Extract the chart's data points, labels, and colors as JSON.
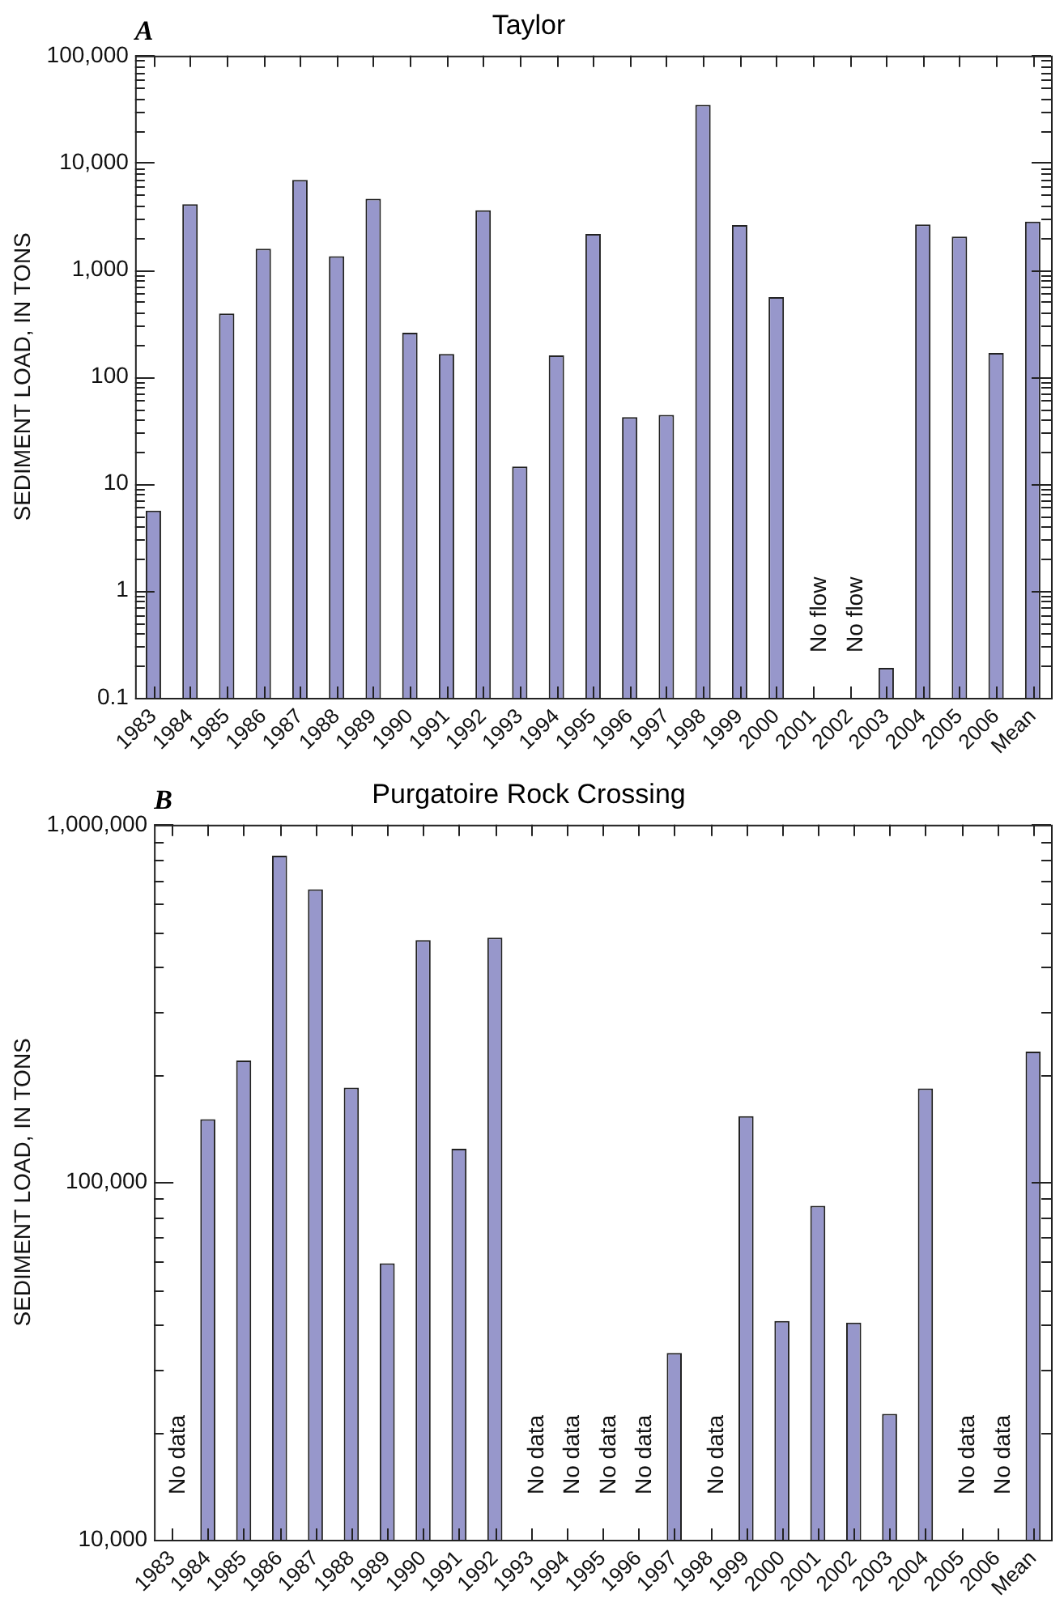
{
  "chart_data": [
    {
      "type": "bar",
      "title": "Taylor",
      "ylabel": "SEDIMENT LOAD, IN TONS",
      "categories": [
        "1983",
        "1984",
        "1985",
        "1986",
        "1987",
        "1988",
        "1989",
        "1990",
        "1991",
        "1992",
        "1993",
        "1994",
        "1995",
        "1996",
        "1997",
        "1998",
        "1999",
        "2000",
        "2001",
        "2002",
        "2003",
        "2004",
        "2005",
        "2006",
        "Mean"
      ],
      "values": [
        5.6,
        4100,
        390,
        1570,
        6900,
        1340,
        4600,
        258,
        163,
        3590,
        14.5,
        158,
        2160,
        42,
        44,
        34800,
        2610,
        556,
        null,
        null,
        0.19,
        2650,
        2040,
        167,
        2810
      ],
      "color": "#9797cb",
      "log": true,
      "ylim": [
        0.1,
        100000
      ],
      "yticks": [
        0.1,
        {
          "value": 0.2,
          "label": null
        },
        {
          "value": 0.3,
          "label": null
        },
        {
          "value": 0.4,
          "label": null
        },
        {
          "value": 0.5,
          "label": null
        },
        {
          "value": 0.6,
          "label": null
        },
        {
          "value": 0.7,
          "label": null
        },
        {
          "value": 0.8,
          "label": null
        },
        {
          "value": 0.9,
          "label": null
        },
        1,
        {
          "value": 2,
          "label": null
        },
        {
          "value": 3,
          "label": null
        },
        {
          "value": 4,
          "label": null
        },
        {
          "value": 5,
          "label": null
        },
        {
          "value": 6,
          "label": null
        },
        {
          "value": 7,
          "label": null
        },
        {
          "value": 8,
          "label": null
        },
        {
          "value": 9,
          "label": null
        },
        10,
        {
          "value": 20,
          "label": null
        },
        {
          "value": 30,
          "label": null
        },
        {
          "value": 40,
          "label": null
        },
        {
          "value": 50,
          "label": null
        },
        {
          "value": 60,
          "label": null
        },
        {
          "value": 70,
          "label": null
        },
        {
          "value": 80,
          "label": null
        },
        {
          "value": 90,
          "label": null
        },
        100,
        {
          "value": 200,
          "label": null
        },
        {
          "value": 300,
          "label": null
        },
        {
          "value": 400,
          "label": null
        },
        {
          "value": 500,
          "label": null
        },
        {
          "value": 600,
          "label": null
        },
        {
          "value": 700,
          "label": null
        },
        {
          "value": 800,
          "label": null
        },
        {
          "value": 900,
          "label": null
        },
        {
          "value": 1000,
          "label": "1,000"
        },
        {
          "value": 2000,
          "label": null
        },
        {
          "value": 3000,
          "label": null
        },
        {
          "value": 4000,
          "label": null
        },
        {
          "value": 5000,
          "label": null
        },
        {
          "value": 6000,
          "label": null
        },
        {
          "value": 7000,
          "label": null
        },
        {
          "value": 8000,
          "label": null
        },
        {
          "value": 9000,
          "label": null
        },
        {
          "value": 10000,
          "label": "10,000"
        },
        {
          "value": 20000,
          "label": null
        },
        {
          "value": 30000,
          "label": null
        },
        {
          "value": 40000,
          "label": null
        },
        {
          "value": 50000,
          "label": null
        },
        {
          "value": 60000,
          "label": null
        },
        {
          "value": 70000,
          "label": null
        },
        {
          "value": 80000,
          "label": null
        },
        {
          "value": 90000,
          "label": null
        },
        {
          "value": 100000,
          "label": "100,000"
        }
      ],
      "grid": false,
      "legend": false,
      "annotations": [
        "A",
        "No flow",
        "No flow"
      ]
    },
    {
      "type": "bar",
      "title": "Purgatoire Rock Crossing",
      "ylabel": "SEDIMENT LOAD, IN TONS",
      "categories": [
        "1983",
        "1984",
        "1985",
        "1986",
        "1987",
        "1988",
        "1989",
        "1990",
        "1991",
        "1992",
        "1993",
        "1994",
        "1995",
        "1996",
        "1997",
        "1998",
        "1999",
        "2000",
        "2001",
        "2002",
        "2003",
        "2004",
        "2005",
        "2006",
        "Mean"
      ],
      "values": [
        null,
        150000,
        219000,
        819000,
        660000,
        184000,
        59300,
        476000,
        124000,
        483000,
        null,
        null,
        null,
        null,
        33300,
        null,
        153000,
        40900,
        85900,
        40500,
        22500,
        183000,
        null,
        null,
        232000
      ],
      "color": "#9797cb",
      "log": true,
      "ylim": [
        10000,
        1000000
      ],
      "yticks": [
        {
          "value": 10000,
          "label": "10,000"
        },
        {
          "value": 20000,
          "label": null
        },
        {
          "value": 30000,
          "label": null
        },
        {
          "value": 40000,
          "label": null
        },
        {
          "value": 50000,
          "label": null
        },
        {
          "value": 60000,
          "label": null
        },
        {
          "value": 70000,
          "label": null
        },
        {
          "value": 80000,
          "label": null
        },
        {
          "value": 90000,
          "label": null
        },
        {
          "value": 100000,
          "label": "100,000"
        },
        {
          "value": 200000,
          "label": null
        },
        {
          "value": 300000,
          "label": null
        },
        {
          "value": 400000,
          "label": null
        },
        {
          "value": 500000,
          "label": null
        },
        {
          "value": 600000,
          "label": null
        },
        {
          "value": 700000,
          "label": null
        },
        {
          "value": 800000,
          "label": null
        },
        {
          "value": 900000,
          "label": null
        },
        {
          "value": 1000000,
          "label": "1,000,000"
        }
      ],
      "grid": false,
      "legend": false,
      "annotations": [
        "B",
        "No data",
        "No data",
        "No data",
        "No data",
        "No data",
        "No data",
        "No data",
        "No data"
      ]
    }
  ]
}
